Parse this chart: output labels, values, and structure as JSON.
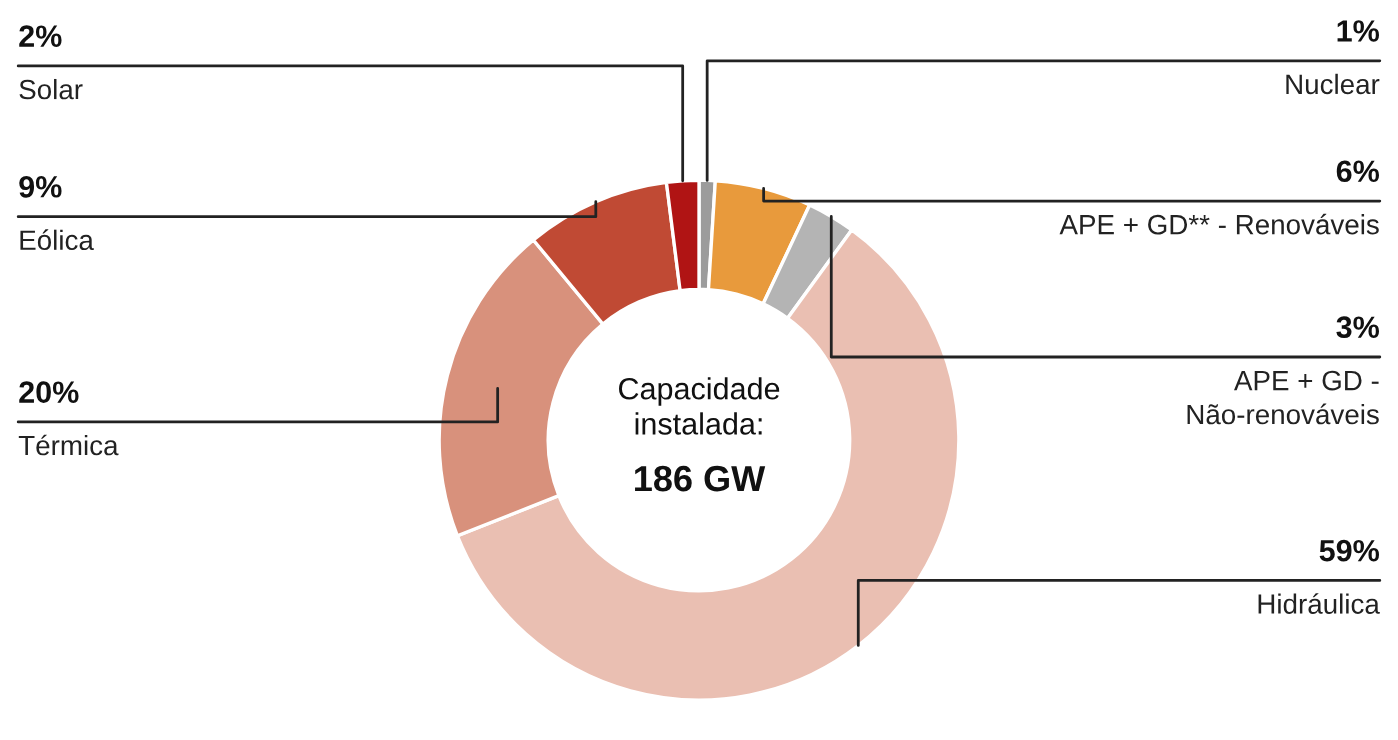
{
  "chart_data": {
    "type": "donut",
    "categories": [
      "Nuclear",
      "APE + GD** - Renováveis",
      "APE + GD -\nNão-renováveis",
      "Hidráulica",
      "Térmica",
      "Eólica",
      "Solar"
    ],
    "values": [
      1,
      6,
      3,
      59,
      20,
      9,
      2
    ],
    "value_labels": [
      "1%",
      "6%",
      "3%",
      "59%",
      "20%",
      "9%",
      "2%"
    ],
    "colors": [
      "#9c9c9c",
      "#e89a3c",
      "#b4b4b4",
      "#eabfb2",
      "#d8917c",
      "#c04a34",
      "#b01414"
    ],
    "annotations": [
      "Capacidade\ninstalada:",
      "186 GW"
    ],
    "legend": false
  }
}
